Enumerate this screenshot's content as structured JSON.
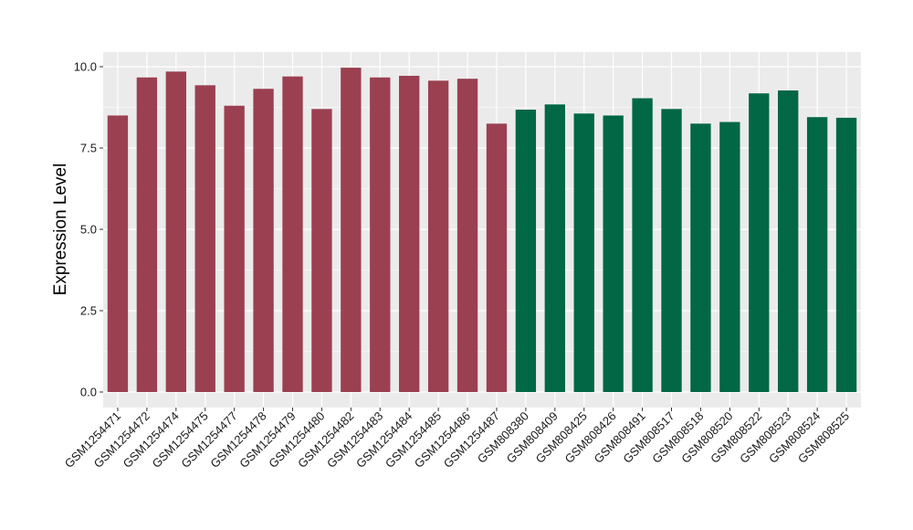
{
  "chart_data": {
    "type": "bar",
    "title": "",
    "xlabel": "",
    "ylabel": "Expression Level",
    "ylim": [
      0,
      10.5
    ],
    "yticks": [
      0.0,
      2.5,
      5.0,
      7.5,
      10.0
    ],
    "ytick_labels": [
      "0.0",
      "2.5",
      "5.0",
      "7.5",
      "10.0"
    ],
    "grid": true,
    "legend": "none",
    "categories": [
      "GSM1254471",
      "GSM1254472",
      "GSM1254474",
      "GSM1254475",
      "GSM1254477",
      "GSM1254478",
      "GSM1254479",
      "GSM1254480",
      "GSM1254482",
      "GSM1254483",
      "GSM1254484",
      "GSM1254485",
      "GSM1254486",
      "GSM1254487",
      "GSM808380",
      "GSM808409",
      "GSM808425",
      "GSM808426",
      "GSM808491",
      "GSM808517",
      "GSM808518",
      "GSM808520",
      "GSM808522",
      "GSM808523",
      "GSM808524",
      "GSM808525"
    ],
    "values": [
      8.5,
      9.67,
      9.85,
      9.43,
      8.8,
      9.32,
      9.7,
      8.7,
      9.97,
      9.67,
      9.72,
      9.57,
      9.63,
      8.25,
      8.68,
      8.84,
      8.56,
      8.5,
      9.03,
      8.7,
      8.25,
      8.3,
      9.18,
      9.27,
      8.45,
      8.43
    ],
    "groups": [
      "a",
      "a",
      "a",
      "a",
      "a",
      "a",
      "a",
      "a",
      "a",
      "a",
      "a",
      "a",
      "a",
      "a",
      "b",
      "b",
      "b",
      "b",
      "b",
      "b",
      "b",
      "b",
      "b",
      "b",
      "b",
      "b"
    ],
    "group_colors": {
      "a": "#9b4050",
      "b": "#026745"
    },
    "panel_color": "#ebebeb",
    "grid_color": "#ffffff"
  }
}
